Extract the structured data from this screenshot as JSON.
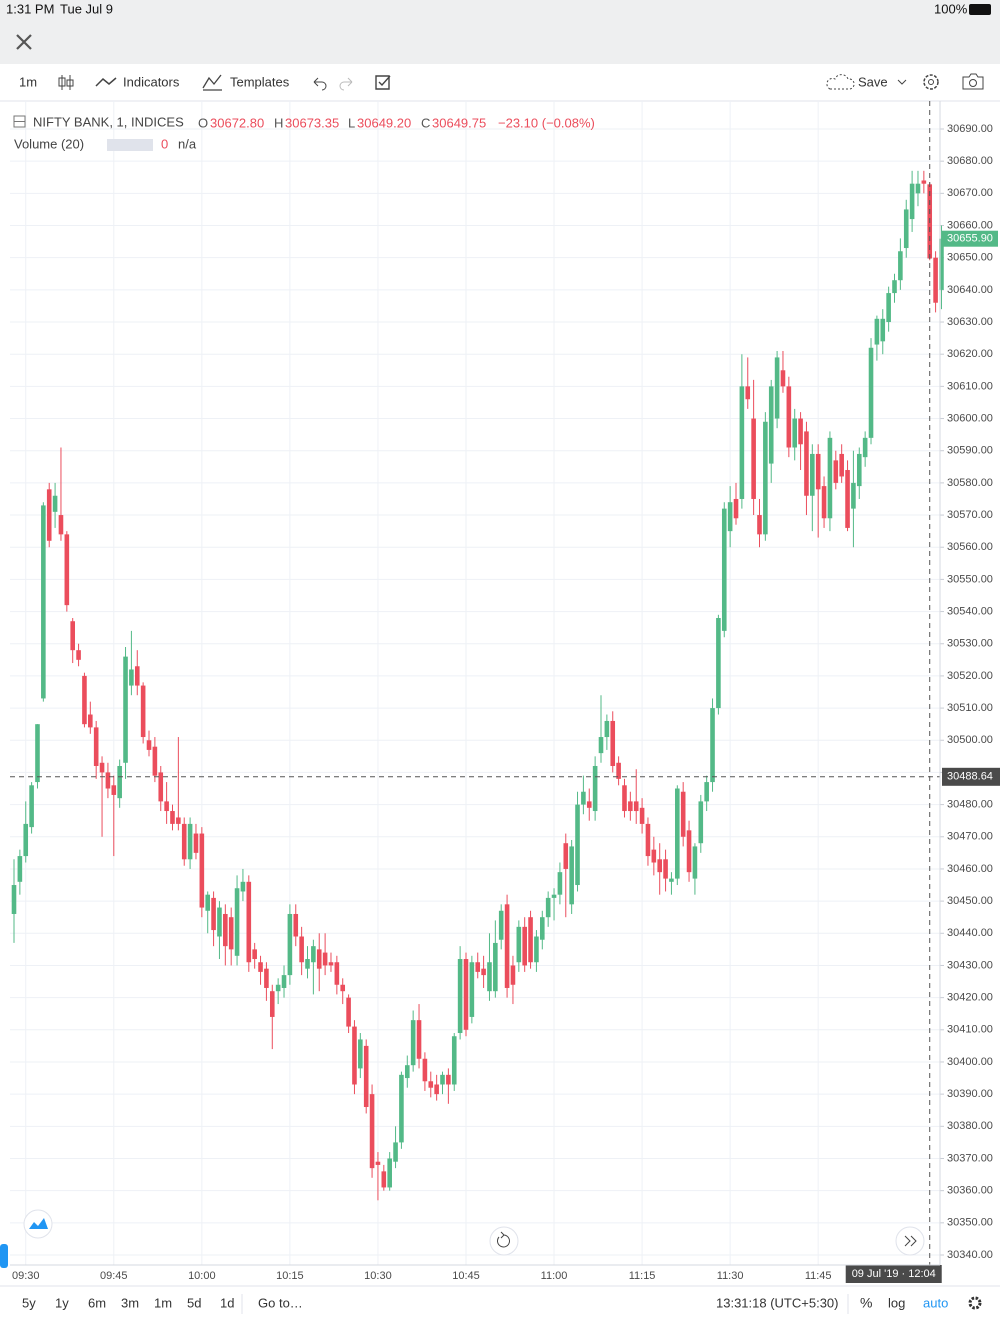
{
  "status": {
    "time": "1:31 PM",
    "date": "Tue Jul 9",
    "battery": "100%"
  },
  "toolbar": {
    "interval": "1m",
    "indicators": "Indicators",
    "templates": "Templates",
    "save": "Save"
  },
  "legend": {
    "symbol": "NIFTY BANK, 1, INDICES",
    "o_prefix": "O",
    "o": "30672.80",
    "h_prefix": "H",
    "h": "30673.35",
    "l_prefix": "L",
    "l": "30649.20",
    "c_prefix": "C",
    "c": "30649.75",
    "change": "−23.10 (−0.08%)"
  },
  "volume": {
    "label": "Volume (20)",
    "value": "0",
    "na": "n/a"
  },
  "footer": {
    "ranges": [
      "5y",
      "1y",
      "6m",
      "3m",
      "1m",
      "5d",
      "1d"
    ],
    "goto": "Go to…",
    "clock": "13:31:18 (UTC+5:30)",
    "percent": "%",
    "log": "log",
    "auto": "auto"
  },
  "chart_data": {
    "type": "candlestick",
    "up_color": "#53b987",
    "down_color": "#eb4d5c",
    "grid": true,
    "last_label": "30655.90",
    "crosshair_price": 30488.64,
    "crosshair_time": "09 Jul '19 · 12:04",
    "ylim": [
      30340,
      30690
    ],
    "yticks": [
      {
        "value": 30340,
        "label": "30340.00"
      },
      {
        "value": 30350,
        "label": "30350.00"
      },
      {
        "value": 30360,
        "label": "30360.00"
      },
      {
        "value": 30370,
        "label": "30370.00"
      },
      {
        "value": 30380,
        "label": "30380.00"
      },
      {
        "value": 30390,
        "label": "30390.00"
      },
      {
        "value": 30400,
        "label": "30400.00"
      },
      {
        "value": 30410,
        "label": "30410.00"
      },
      {
        "value": 30420,
        "label": "30420.00"
      },
      {
        "value": 30430,
        "label": "30430.00"
      },
      {
        "value": 30440,
        "label": "30440.00"
      },
      {
        "value": 30450,
        "label": "30450.00"
      },
      {
        "value": 30460,
        "label": "30460.00"
      },
      {
        "value": 30470,
        "label": "30470.00"
      },
      {
        "value": 30480,
        "label": "30480.00"
      },
      {
        "value": 30490,
        "label": "30490.00"
      },
      {
        "value": 30500,
        "label": "30500.00"
      },
      {
        "value": 30510,
        "label": "30510.00"
      },
      {
        "value": 30520,
        "label": "30520.00"
      },
      {
        "value": 30530,
        "label": "30530.00"
      },
      {
        "value": 30540,
        "label": "30540.00"
      },
      {
        "value": 30550,
        "label": "30550.00"
      },
      {
        "value": 30560,
        "label": "30560.00"
      },
      {
        "value": 30570,
        "label": "30570.00"
      },
      {
        "value": 30580,
        "label": "30580.00"
      },
      {
        "value": 30590,
        "label": "30590.00"
      },
      {
        "value": 30600,
        "label": "30600.00"
      },
      {
        "value": 30610,
        "label": "30610.00"
      },
      {
        "value": 30620,
        "label": "30620.00"
      },
      {
        "value": 30630,
        "label": "30630.00"
      },
      {
        "value": 30640,
        "label": "30640.00"
      },
      {
        "value": 30650,
        "label": "30650.00"
      },
      {
        "value": 30660,
        "label": "30660.00"
      },
      {
        "value": 30670,
        "label": "30670.00"
      },
      {
        "value": 30680,
        "label": "30680.00"
      },
      {
        "value": 30690,
        "label": "30690.00"
      }
    ],
    "categories": [
      null,
      null,
      "09:30",
      null,
      null,
      null,
      null,
      null,
      null,
      null,
      null,
      null,
      null,
      null,
      null,
      null,
      null,
      "09:45",
      null,
      null,
      null,
      null,
      null,
      null,
      null,
      null,
      null,
      null,
      null,
      null,
      null,
      null,
      "10:00",
      null,
      null,
      null,
      null,
      null,
      null,
      null,
      null,
      null,
      null,
      null,
      null,
      null,
      null,
      "10:15",
      null,
      null,
      null,
      null,
      null,
      null,
      null,
      null,
      null,
      null,
      null,
      null,
      null,
      null,
      "10:30",
      null,
      null,
      null,
      null,
      null,
      null,
      null,
      null,
      null,
      null,
      null,
      null,
      null,
      null,
      "10:45",
      null,
      null,
      null,
      null,
      null,
      null,
      null,
      null,
      null,
      null,
      null,
      null,
      null,
      null,
      "11:00",
      null,
      null,
      null,
      null,
      null,
      null,
      null,
      null,
      null,
      null,
      null,
      null,
      null,
      null,
      "11:15",
      null,
      null,
      null,
      null,
      null,
      null,
      null,
      null,
      null,
      null,
      null,
      null,
      null,
      null,
      "11:30",
      null,
      null,
      null,
      null,
      null,
      null,
      null,
      null,
      null,
      null,
      null,
      null,
      null,
      null,
      "11:45",
      null,
      null,
      null,
      null,
      null,
      null,
      null,
      null,
      null,
      null,
      null,
      null,
      null,
      null,
      null,
      null,
      null,
      null,
      null,
      null,
      null
    ],
    "open": [
      30446,
      30456,
      30464,
      30473,
      30487,
      30513,
      30578,
      30571,
      30570,
      30564,
      30537,
      30528,
      30520,
      30508,
      30504,
      30493,
      30490,
      30486,
      30482,
      30493,
      30517,
      30523,
      30517,
      30500,
      30498,
      30490,
      30481,
      30478,
      30476,
      30474,
      30463,
      30471,
      30471,
      30447,
      30451,
      30439,
      30446,
      30445,
      30433,
      30453,
      30456,
      30435,
      30431,
      30429,
      30422,
      30422,
      30423,
      30427,
      30446,
      30439,
      30429,
      30431,
      30435,
      30434,
      30431,
      30431,
      30424,
      30420,
      30411,
      30398,
      30405,
      30390,
      30369,
      30366,
      30361,
      30369,
      30375,
      30395,
      30399,
      30413,
      30401,
      30394,
      30393,
      30393,
      30396,
      30393,
      30409,
      30432,
      30414,
      30431,
      30429,
      30422,
      30422,
      30438,
      30449,
      30430,
      30431,
      30442,
      30445,
      30431,
      30438,
      30445,
      30451,
      30452,
      30468,
      30449,
      30455,
      30480,
      30481,
      30478,
      30496,
      30501,
      30506,
      30493,
      30486,
      30481,
      30481,
      30479,
      30474,
      30466,
      30463,
      30463,
      30456,
      30457,
      30484,
      30472,
      30457,
      30468,
      30481,
      30487,
      30510,
      30534,
      30565,
      30575,
      30575,
      30610,
      30600,
      30570,
      30564,
      30586,
      30600,
      30615,
      30610,
      30591,
      30600,
      30596,
      30576,
      30589,
      30579,
      30569,
      30587,
      30589,
      30584,
      30572,
      30579,
      30588,
      30594,
      30623,
      30624,
      30630,
      30639,
      30643,
      30653,
      30662,
      30670,
      30674,
      30672.8,
      30650,
      30640
    ],
    "high": [
      30463,
      30466,
      30481,
      30487,
      30505,
      30574,
      30580,
      30580,
      30591,
      30565,
      30538,
      30530,
      30521,
      30512,
      30506,
      30495,
      30493,
      30489,
      30494,
      30529,
      30534,
      30528,
      30518,
      30503,
      30501,
      30492,
      30487,
      30480,
      30501,
      30476,
      30476,
      30474,
      30473,
      30453,
      30453,
      30450,
      30449,
      30448,
      30458,
      30460,
      30458,
      30437,
      30433,
      30431,
      30424,
      30426,
      30430,
      30449,
      30449,
      30442,
      30436,
      30438,
      30440,
      30440,
      30434,
      30433,
      30426,
      30421,
      30413,
      30409,
      30407,
      30393,
      30372,
      30368,
      30372,
      30380,
      30397,
      30402,
      30416,
      30418,
      30403,
      30397,
      30396,
      30397,
      30398,
      30409,
      30436,
      30434,
      30433,
      30434,
      30433,
      30440,
      30444,
      30449,
      30452,
      30433,
      30444,
      30445,
      30447,
      30441,
      30447,
      30453,
      30454,
      30462,
      30471,
      30469,
      30484,
      30489,
      30485,
      30495,
      30514,
      30508,
      30509,
      30495,
      30488,
      30484,
      30491,
      30482,
      30476,
      30470,
      30468,
      30466,
      30459,
      30486,
      30487,
      30475,
      30468,
      30483,
      30489,
      30513,
      30539,
      30574,
      30579,
      30580,
      30620,
      30619,
      30612,
      30575,
      30602,
      30612,
      30621,
      30621,
      30613,
      30603,
      30602,
      30599,
      30592,
      30592,
      30582,
      30596,
      30590,
      30592,
      30587,
      30590,
      30591,
      30596,
      30625,
      30632,
      30634,
      30641,
      30645,
      30656,
      30668,
      30677,
      30677,
      30677,
      30673.35,
      30652,
      30660
    ],
    "low": [
      30437,
      30452,
      30462,
      30471,
      30485,
      30512,
      30560,
      30566,
      30562,
      30540,
      30524,
      30523,
      30504,
      30502,
      30488,
      30470,
      30482,
      30464,
      30479,
      30488,
      30514,
      30514,
      30499,
      30495,
      30487,
      30478,
      30474,
      30472,
      30472,
      30461,
      30460,
      30463,
      30445,
      30440,
      30436,
      30432,
      30430,
      30430,
      30430,
      30450,
      30428,
      30429,
      30424,
      30419,
      30404,
      30418,
      30420,
      30424,
      30436,
      30427,
      30426,
      30421,
      30422,
      30427,
      30428,
      30421,
      30418,
      30409,
      30390,
      30395,
      30384,
      30364,
      30357,
      30360,
      30360,
      30367,
      30373,
      30392,
      30397,
      30398,
      30391,
      30389,
      30388,
      30390,
      30387,
      30391,
      30407,
      30408,
      30412,
      30426,
      30423,
      30419,
      30420,
      30435,
      30420,
      30418,
      30428,
      30428,
      30429,
      30428,
      30435,
      30442,
      30444,
      30449,
      30445,
      30446,
      30453,
      30477,
      30475,
      30475,
      30493,
      30497,
      30490,
      30486,
      30476,
      30475,
      30474,
      30471,
      30461,
      30458,
      30452,
      30453,
      30452,
      30455,
      30467,
      30456,
      30452,
      30465,
      30478,
      30484,
      30508,
      30532,
      30560,
      30567,
      30572,
      30603,
      30570,
      30560,
      30562,
      30580,
      30597,
      30608,
      30588,
      30587,
      30584,
      30570,
      30565,
      30563,
      30566,
      30565,
      30578,
      30580,
      30565,
      30560,
      30575,
      30585,
      30592,
      30618,
      30620,
      30627,
      30636,
      30640,
      30650,
      30658,
      30666,
      30670,
      30649.2,
      30633,
      30634
    ],
    "close": [
      30455,
      30464,
      30474,
      30486,
      30505,
      30573,
      30562,
      30576,
      30564,
      30542,
      30528,
      30525,
      30505,
      30504,
      30492,
      30490,
      30485,
      30483,
      30492,
      30526,
      30522,
      30517,
      30501,
      30497,
      30489,
      30481,
      30478,
      30474,
      30474,
      30463,
      30474,
      30465,
      30448,
      30452,
      30441,
      30448,
      30436,
      30435,
      30454,
      30456,
      30431,
      30432,
      30428,
      30423,
      30414,
      30424,
      30427,
      30446,
      30439,
      30431,
      30432,
      30436,
      30429,
      30430,
      30430,
      30424,
      30422,
      30411,
      30393,
      30407,
      30386,
      30367,
      30368,
      30361,
      30370,
      30375,
      30396,
      30399,
      30413,
      30401,
      30394,
      30392,
      30390,
      30396,
      30393,
      30408,
      30432,
      30410,
      30431,
      30428,
      30427,
      30431,
      30437,
      30447,
      30423,
      30424,
      30442,
      30430,
      30431,
      30439,
      30445,
      30451,
      30452,
      30459,
      30460,
      30467,
      30480,
      30484,
      30479,
      30492,
      30501,
      30506,
      30492,
      30488,
      30478,
      30478,
      30478,
      30474,
      30464,
      30462,
      30459,
      30457,
      30457,
      30485,
      30470,
      30459,
      30467,
      30481,
      30487,
      30510,
      30538,
      30572,
      30574,
      30569,
      30610,
      30606,
      30575,
      30564,
      30599,
      30610,
      30619,
      30610,
      30591,
      30600,
      30592,
      30576,
      30589,
      30578,
      30569,
      30594,
      30580,
      30582,
      30566,
      30580,
      30589,
      30594,
      30622,
      30631,
      30631,
      30639,
      30643,
      30652,
      30665,
      30673,
      30673,
      30673,
      30649.75,
      30636,
      30655.9
    ]
  }
}
